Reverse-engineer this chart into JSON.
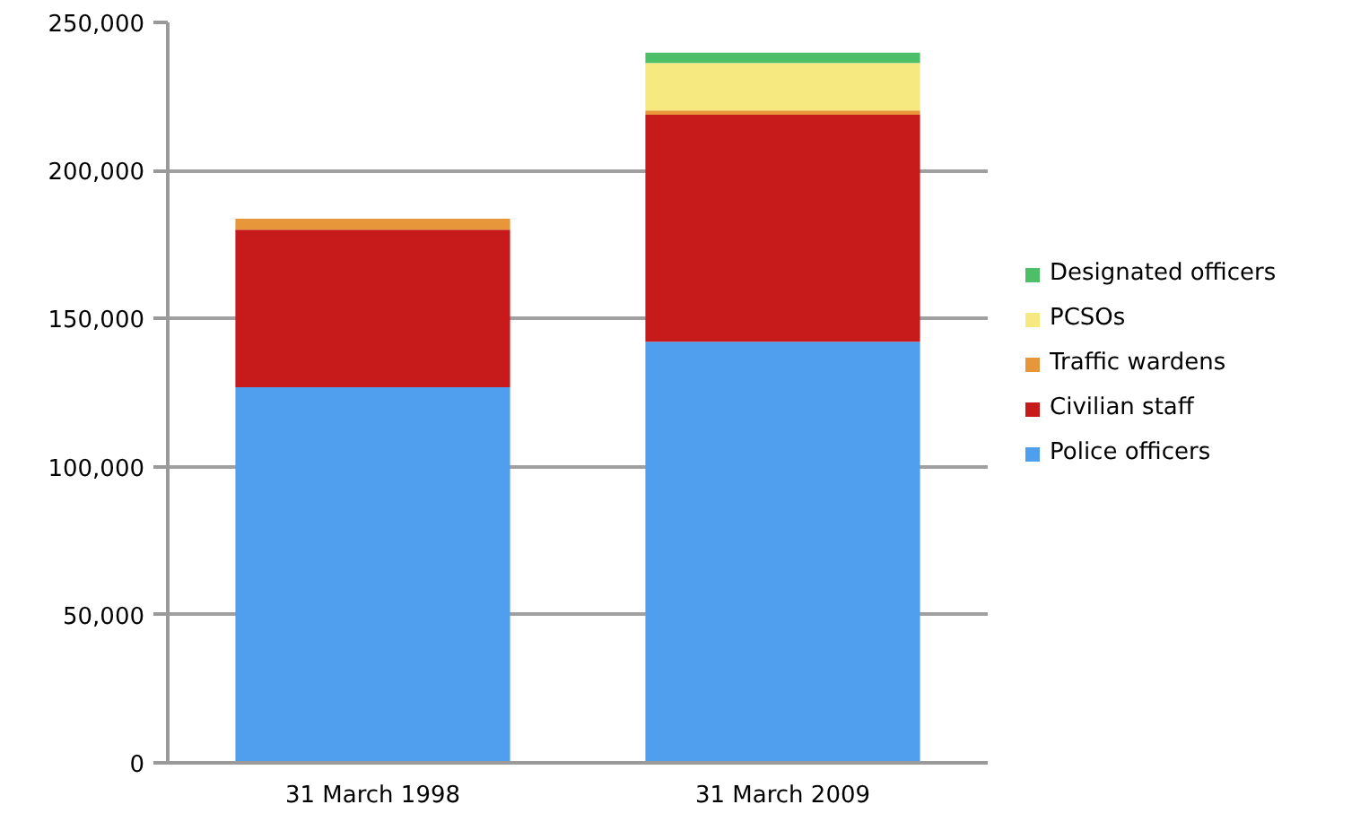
{
  "chart_data": {
    "type": "bar",
    "stacked": true,
    "categories": [
      "31 March 1998",
      "31 March 2009"
    ],
    "series": [
      {
        "name": "Police officers",
        "color": "#4f9fee",
        "values": [
          126800,
          142200
        ]
      },
      {
        "name": "Civilian staff",
        "color": "#c61a1b",
        "values": [
          53200,
          76600
        ]
      },
      {
        "name": "Traffic wardens",
        "color": "#e8963a",
        "values": [
          3700,
          1500
        ]
      },
      {
        "name": "PCSOs",
        "color": "#f5e97f",
        "values": [
          null,
          16000
        ]
      },
      {
        "name": "Designated officers",
        "color": "#4dbf68",
        "values": [
          null,
          3500
        ]
      }
    ],
    "ylim": [
      0,
      250000
    ],
    "yticks": [
      {
        "value": 0,
        "label": "0"
      },
      {
        "value": 50000,
        "label": "50,000"
      },
      {
        "value": 100000,
        "label": "100,000"
      },
      {
        "value": 150000,
        "label": "150,000"
      },
      {
        "value": 200000,
        "label": "200,000"
      },
      {
        "value": 250000,
        "label": "250,000"
      }
    ],
    "grid": "y",
    "legend": "right"
  }
}
